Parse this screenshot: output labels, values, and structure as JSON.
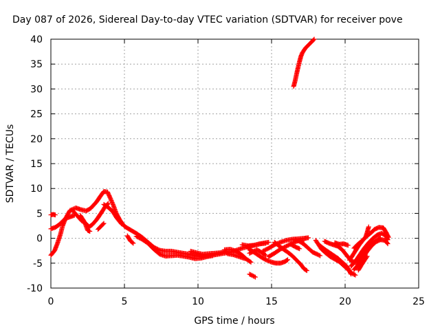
{
  "chart_data": {
    "type": "scatter",
    "title": "Day 087 of 2026, Sidereal Day-to-day VTEC variation (SDTVAR) for receiver pove",
    "xlabel": "GPS time / hours",
    "ylabel": "SDTVAR / TECUs",
    "xlim": [
      0,
      25
    ],
    "ylim": [
      -10,
      40
    ],
    "xticks": [
      0,
      5,
      10,
      15,
      20,
      25
    ],
    "yticks": [
      -10,
      -5,
      0,
      5,
      10,
      15,
      20,
      25,
      30,
      35,
      40
    ],
    "grid": true,
    "marker": "+",
    "color": "#ff0000",
    "series": [
      {
        "name": "SDTVAR",
        "traces": [
          [
            [
              0.0,
              -3.4
            ],
            [
              0.25,
              -2.5
            ],
            [
              0.45,
              -1.0
            ],
            [
              0.65,
              0.8
            ],
            [
              0.8,
              2.5
            ],
            [
              1.0,
              4.0
            ],
            [
              1.3,
              5.6
            ],
            [
              1.7,
              6.1
            ],
            [
              2.0,
              5.8
            ],
            [
              2.4,
              5.5
            ],
            [
              2.7,
              6.0
            ],
            [
              3.1,
              7.3
            ],
            [
              3.4,
              8.6
            ],
            [
              3.6,
              9.4
            ],
            [
              3.85,
              9.3
            ],
            [
              4.05,
              8.0
            ],
            [
              4.25,
              6.6
            ],
            [
              4.45,
              5.0
            ],
            [
              4.7,
              3.6
            ],
            [
              5.0,
              2.4
            ],
            [
              5.4,
              1.7
            ],
            [
              5.8,
              1.0
            ],
            [
              6.2,
              0.2
            ],
            [
              6.6,
              -0.8
            ],
            [
              7.0,
              -1.8
            ],
            [
              7.4,
              -2.4
            ],
            [
              7.8,
              -2.6
            ],
            [
              8.2,
              -2.6
            ],
            [
              8.6,
              -2.8
            ],
            [
              9.0,
              -3.0
            ],
            [
              9.4,
              -3.2
            ],
            [
              9.8,
              -3.5
            ],
            [
              10.2,
              -3.7
            ],
            [
              10.6,
              -3.6
            ],
            [
              11.0,
              -3.4
            ],
            [
              11.4,
              -3.2
            ],
            [
              11.8,
              -3.0
            ],
            [
              12.2,
              -2.8
            ],
            [
              12.6,
              -2.4
            ],
            [
              13.0,
              -2.0
            ],
            [
              13.5,
              -1.6
            ],
            [
              14.0,
              -1.3
            ],
            [
              14.4,
              -1.0
            ],
            [
              14.8,
              -0.8
            ]
          ],
          [
            [
              0.0,
              1.9
            ],
            [
              0.3,
              2.2
            ],
            [
              0.55,
              2.7
            ],
            [
              0.8,
              3.4
            ],
            [
              1.0,
              4.0
            ],
            [
              1.3,
              4.3
            ],
            [
              1.6,
              4.6
            ]
          ],
          [
            [
              0.0,
              4.7
            ],
            [
              0.15,
              4.8
            ],
            [
              0.3,
              4.7
            ]
          ],
          [
            [
              1.5,
              5.5
            ],
            [
              1.8,
              4.5
            ],
            [
              2.1,
              3.5
            ],
            [
              2.4,
              2.9
            ],
            [
              2.6,
              2.3
            ],
            [
              2.8,
              2.7
            ],
            [
              3.1,
              3.7
            ],
            [
              3.4,
              5.0
            ],
            [
              3.7,
              6.4
            ],
            [
              3.9,
              7.0
            ]
          ],
          [
            [
              2.0,
              4.6
            ],
            [
              2.3,
              3.2
            ],
            [
              2.5,
              1.6
            ],
            [
              2.65,
              1.4
            ]
          ],
          [
            [
              3.2,
              1.8
            ],
            [
              3.4,
              2.4
            ],
            [
              3.6,
              3.0
            ]
          ],
          [
            [
              3.6,
              6.8
            ],
            [
              3.9,
              6.2
            ],
            [
              4.2,
              5.4
            ],
            [
              4.5,
              4.0
            ],
            [
              4.8,
              2.9
            ]
          ],
          [
            [
              5.2,
              0.5
            ],
            [
              5.4,
              -0.5
            ],
            [
              5.6,
              -1.0
            ]
          ],
          [
            [
              5.8,
              0.4
            ],
            [
              6.2,
              -0.2
            ],
            [
              6.6,
              -1.0
            ],
            [
              7.0,
              -2.2
            ],
            [
              7.4,
              -3.2
            ],
            [
              7.8,
              -3.6
            ],
            [
              8.2,
              -3.5
            ],
            [
              8.6,
              -3.4
            ],
            [
              9.0,
              -3.6
            ],
            [
              9.4,
              -3.8
            ],
            [
              9.8,
              -4.1
            ],
            [
              10.2,
              -4.0
            ],
            [
              10.6,
              -3.7
            ],
            [
              11.0,
              -3.5
            ]
          ],
          [
            [
              9.5,
              -2.6
            ],
            [
              9.9,
              -2.9
            ],
            [
              10.3,
              -3.2
            ],
            [
              10.7,
              -3.1
            ],
            [
              11.1,
              -3.0
            ],
            [
              11.5,
              -2.9
            ],
            [
              11.9,
              -2.6
            ]
          ],
          [
            [
              11.8,
              -2.3
            ],
            [
              12.2,
              -2.2
            ],
            [
              12.6,
              -2.6
            ],
            [
              13.0,
              -3.4
            ],
            [
              13.3,
              -4.2
            ],
            [
              13.6,
              -4.8
            ]
          ],
          [
            [
              12.0,
              -3.1
            ],
            [
              12.4,
              -3.3
            ],
            [
              12.8,
              -3.7
            ],
            [
              13.2,
              -4.1
            ]
          ],
          [
            [
              13.0,
              -1.3
            ],
            [
              13.4,
              -1.5
            ],
            [
              13.8,
              -1.4
            ],
            [
              14.2,
              -1.1
            ],
            [
              14.6,
              -1.0
            ]
          ],
          [
            [
              13.4,
              -2.0
            ],
            [
              13.7,
              -2.6
            ],
            [
              14.0,
              -3.2
            ],
            [
              14.3,
              -3.8
            ],
            [
              14.6,
              -4.3
            ],
            [
              15.0,
              -4.8
            ],
            [
              15.3,
              -5.0
            ],
            [
              15.6,
              -5.0
            ],
            [
              15.9,
              -4.7
            ],
            [
              16.1,
              -4.3
            ]
          ],
          [
            [
              13.5,
              -3.0
            ],
            [
              13.8,
              -2.6
            ],
            [
              14.0,
              -2.3
            ],
            [
              14.3,
              -2.8
            ],
            [
              14.6,
              -3.4
            ]
          ],
          [
            [
              13.5,
              -7.2
            ],
            [
              13.7,
              -7.5
            ],
            [
              13.9,
              -7.8
            ]
          ],
          [
            [
              14.4,
              -2.6
            ],
            [
              14.8,
              -2.0
            ],
            [
              15.2,
              -1.3
            ],
            [
              15.6,
              -0.8
            ],
            [
              16.0,
              -0.4
            ],
            [
              16.4,
              -0.2
            ],
            [
              16.8,
              -0.1
            ],
            [
              17.2,
              0.0
            ],
            [
              17.5,
              0.1
            ]
          ],
          [
            [
              14.8,
              -3.7
            ],
            [
              15.2,
              -3.0
            ],
            [
              15.6,
              -2.2
            ],
            [
              16.0,
              -1.6
            ],
            [
              16.4,
              -1.0
            ],
            [
              16.8,
              -0.5
            ],
            [
              17.2,
              -0.4
            ]
          ],
          [
            [
              15.2,
              -0.8
            ],
            [
              15.5,
              -1.5
            ],
            [
              15.8,
              -2.2
            ],
            [
              16.1,
              -2.8
            ],
            [
              16.4,
              -3.5
            ],
            [
              16.7,
              -4.4
            ],
            [
              17.0,
              -5.3
            ],
            [
              17.2,
              -6.1
            ],
            [
              17.4,
              -6.5
            ]
          ],
          [
            [
              16.3,
              -1.2
            ],
            [
              16.6,
              -1.7
            ],
            [
              16.9,
              -2.1
            ]
          ],
          [
            [
              16.6,
              -0.3
            ],
            [
              16.9,
              -0.6
            ],
            [
              17.2,
              -1.2
            ],
            [
              17.5,
              -2.0
            ],
            [
              17.8,
              -2.8
            ],
            [
              18.1,
              -3.2
            ],
            [
              18.3,
              -3.5
            ]
          ],
          [
            [
              16.5,
              30.5
            ],
            [
              16.6,
              31.6
            ],
            [
              16.7,
              33.0
            ],
            [
              16.8,
              34.3
            ],
            [
              16.9,
              35.5
            ],
            [
              17.0,
              36.6
            ],
            [
              17.1,
              37.3
            ],
            [
              17.3,
              38.2
            ],
            [
              17.5,
              38.8
            ],
            [
              17.7,
              39.4
            ],
            [
              17.9,
              40.0
            ]
          ],
          [
            [
              18.0,
              -0.4
            ],
            [
              18.2,
              -1.3
            ],
            [
              18.4,
              -2.2
            ],
            [
              18.7,
              -3.0
            ],
            [
              19.0,
              -3.7
            ],
            [
              19.3,
              -4.2
            ],
            [
              19.6,
              -4.7
            ],
            [
              19.9,
              -5.5
            ],
            [
              20.2,
              -6.3
            ],
            [
              20.5,
              -7.1
            ],
            [
              20.7,
              -7.4
            ]
          ],
          [
            [
              18.3,
              -1.5
            ],
            [
              18.6,
              -2.2
            ],
            [
              18.9,
              -2.8
            ],
            [
              19.2,
              -3.4
            ],
            [
              19.5,
              -4.0
            ],
            [
              19.8,
              -4.8
            ],
            [
              20.1,
              -5.6
            ],
            [
              20.3,
              -6.6
            ],
            [
              20.4,
              -7.2
            ]
          ],
          [
            [
              18.6,
              -0.6
            ],
            [
              18.9,
              -1.0
            ],
            [
              19.2,
              -1.3
            ],
            [
              19.5,
              -1.6
            ],
            [
              19.8,
              -2.3
            ],
            [
              20.1,
              -3.4
            ],
            [
              20.4,
              -4.5
            ],
            [
              20.7,
              -4.9
            ],
            [
              21.0,
              -4.3
            ],
            [
              21.3,
              -3.0
            ],
            [
              21.6,
              -1.8
            ],
            [
              21.9,
              -0.9
            ],
            [
              22.2,
              -0.3
            ],
            [
              22.4,
              0.1
            ]
          ],
          [
            [
              19.3,
              -0.9
            ],
            [
              19.6,
              -1.2
            ],
            [
              19.9,
              -1.1
            ],
            [
              20.2,
              -1.4
            ]
          ],
          [
            [
              20.3,
              -4.4
            ],
            [
              20.6,
              -3.0
            ],
            [
              20.9,
              -1.6
            ],
            [
              21.2,
              -0.4
            ],
            [
              21.5,
              0.5
            ],
            [
              21.8,
              1.2
            ],
            [
              22.0,
              1.8
            ],
            [
              22.3,
              2.2
            ],
            [
              22.6,
              2.1
            ],
            [
              22.8,
              1.1
            ],
            [
              22.95,
              0.2
            ]
          ],
          [
            [
              20.4,
              -5.6
            ],
            [
              20.7,
              -4.6
            ],
            [
              21.0,
              -3.3
            ],
            [
              21.3,
              -2.0
            ],
            [
              21.6,
              -0.9
            ],
            [
              21.9,
              0.0
            ],
            [
              22.2,
              0.7
            ],
            [
              22.5,
              1.0
            ],
            [
              22.8,
              0.4
            ],
            [
              22.9,
              -0.3
            ]
          ],
          [
            [
              20.6,
              -6.3
            ],
            [
              20.9,
              -5.3
            ],
            [
              21.2,
              -3.9
            ],
            [
              21.5,
              -2.6
            ],
            [
              21.8,
              -1.5
            ],
            [
              22.1,
              -0.7
            ],
            [
              22.4,
              -0.3
            ],
            [
              22.7,
              -0.4
            ],
            [
              22.9,
              -1.1
            ]
          ],
          [
            [
              20.6,
              -2.0
            ],
            [
              20.9,
              -1.1
            ],
            [
              21.2,
              -0.4
            ],
            [
              21.4,
              0.3
            ],
            [
              21.5,
              1.2
            ],
            [
              21.6,
              2.3
            ]
          ],
          [
            [
              20.9,
              -6.4
            ],
            [
              21.1,
              -5.4
            ],
            [
              21.3,
              -4.5
            ],
            [
              21.5,
              -3.6
            ]
          ]
        ]
      }
    ]
  }
}
